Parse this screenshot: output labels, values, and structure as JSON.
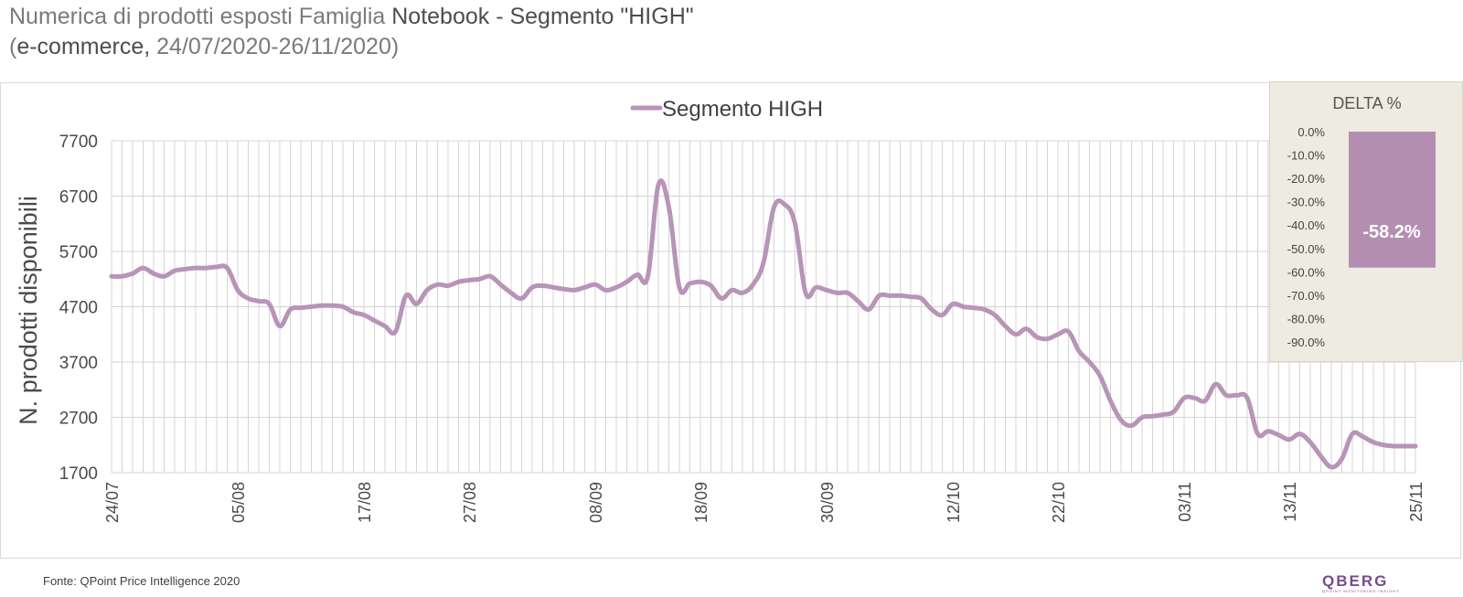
{
  "title": {
    "line1_light": "Numerica di prodotti esposti Famiglia ",
    "line1_bold": "Notebook - Segmento \"HIGH\"",
    "line2_open": "(",
    "line2_bold": "e-commerce,",
    "line2_light": " 24/07/2020-26/11/2020)"
  },
  "footer": {
    "source": "Fonte: QPoint Price Intelligence 2020",
    "logo": "QBERG",
    "logo_tagline": "QPOINT MONITORING INSIGHT"
  },
  "colors": {
    "series": "#b894b8",
    "bar": "#b48eb1",
    "panel_bg": "#eeebe0",
    "grid": "#d9d9d9"
  },
  "chart_data": [
    {
      "type": "line",
      "title": "",
      "ylabel": "N. prodotti disponibili",
      "xlabel": "",
      "ylim": [
        1700,
        7700
      ],
      "yticks": [
        "7700",
        "6700",
        "5700",
        "4700",
        "3700",
        "2700",
        "1700"
      ],
      "xtick_labels": [
        "24/07",
        "05/08",
        "17/08",
        "27/08",
        "08/09",
        "18/09",
        "30/09",
        "12/10",
        "22/10",
        "03/11",
        "13/11",
        "25/11"
      ],
      "xtick_index": [
        0,
        12,
        24,
        34,
        46,
        56,
        68,
        80,
        90,
        102,
        112,
        124
      ],
      "grid": true,
      "legend": "top-center",
      "series": [
        {
          "name": "Segmento HIGH",
          "values": [
            5250,
            5250,
            5300,
            5400,
            5300,
            5250,
            5350,
            5380,
            5400,
            5400,
            5420,
            5400,
            5000,
            4850,
            4800,
            4750,
            4350,
            4650,
            4680,
            4700,
            4720,
            4720,
            4700,
            4600,
            4550,
            4450,
            4350,
            4250,
            4900,
            4750,
            5000,
            5100,
            5080,
            5150,
            5180,
            5200,
            5250,
            5100,
            4950,
            4850,
            5050,
            5080,
            5050,
            5020,
            5000,
            5050,
            5100,
            5000,
            5050,
            5150,
            5280,
            5250,
            6900,
            6500,
            5050,
            5120,
            5150,
            5080,
            4850,
            5000,
            4950,
            5100,
            5500,
            6500,
            6550,
            6200,
            4950,
            5050,
            5000,
            4950,
            4950,
            4800,
            4650,
            4900,
            4900,
            4900,
            4880,
            4850,
            4650,
            4550,
            4750,
            4700,
            4680,
            4650,
            4550,
            4350,
            4200,
            4300,
            4150,
            4120,
            4200,
            4250,
            3900,
            3700,
            3450,
            3000,
            2650,
            2550,
            2700,
            2720,
            2750,
            2800,
            3050,
            3050,
            3000,
            3300,
            3100,
            3100,
            3050,
            2400,
            2450,
            2380,
            2300,
            2400,
            2250,
            2000,
            1800,
            1950,
            2400,
            2350,
            2250,
            2200,
            2180,
            2180,
            2180
          ]
        }
      ]
    },
    {
      "type": "bar",
      "title": "DELTA %",
      "ylim": [
        -90,
        0
      ],
      "yticks": [
        "0.0%",
        "-10.0%",
        "-20.0%",
        "-30.0%",
        "-40.0%",
        "-50.0%",
        "-60.0%",
        "-70.0%",
        "-80.0%",
        "-90.0%"
      ],
      "categories": [
        ""
      ],
      "values": [
        -58.2
      ],
      "data_labels": [
        "-58.2%"
      ]
    }
  ]
}
